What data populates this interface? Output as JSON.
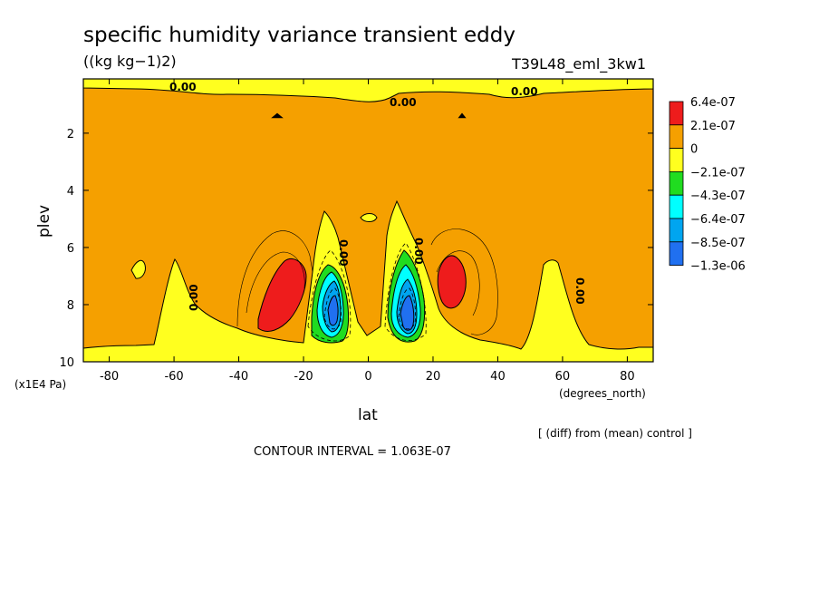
{
  "chart_data": {
    "type": "contour",
    "title": "specific humidity variance transient eddy",
    "units_label": "((kg kg−1)2)",
    "run_label": "T39L48_eml_3kw1",
    "xlabel": "lat",
    "x_units": "(degrees_north)",
    "ylabel": "plev",
    "y_units": "(x1E4 Pa)",
    "xlim": [
      -88,
      88
    ],
    "ylim": [
      10,
      0.1
    ],
    "x_ticks": [
      "-80",
      "-60",
      "-40",
      "-20",
      "0",
      "20",
      "40",
      "60",
      "80"
    ],
    "y_ticks": [
      "2",
      "4",
      "6",
      "8",
      "10"
    ],
    "x_tick_values": [
      -80,
      -60,
      -40,
      -20,
      0,
      20,
      40,
      60,
      80
    ],
    "y_tick_values": [
      2,
      4,
      6,
      8,
      10
    ],
    "note": "[ (diff) from (mean) control ]",
    "contour_interval_text": "CONTOUR INTERVAL = 1.063E-07",
    "contour_labels": [
      "0.00",
      "0.00",
      "0.00",
      "0.00",
      "0.00",
      "0.00",
      "0.00"
    ],
    "legend": [
      {
        "label": "6.4e-07",
        "color": "#ee1c1c"
      },
      {
        "label": "2.1e-07",
        "color": "#f5a000"
      },
      {
        "label": "0",
        "color": "#ffff1f"
      },
      {
        "label": "−2.1e-07",
        "color": "#20dc20"
      },
      {
        "label": "−4.3e-07",
        "color": "#00ffff"
      },
      {
        "label": "−6.4e-07",
        "color": "#00a5f0"
      },
      {
        "label": "−8.5e-07",
        "color": "#2070f0"
      },
      {
        "label": "−1.3e-06",
        "color": ""
      }
    ],
    "colors": {
      "positive": "#f5a000",
      "strong_positive": "#ee1c1c",
      "near_zero": "#ffff1f",
      "neg1": "#20dc20",
      "neg2": "#00ffff",
      "neg3": "#00a5f0",
      "neg4": "#2070f0"
    },
    "features": [
      {
        "name": "southern-negative-core",
        "lat": -12,
        "plev": 8.2,
        "min_value": -1e-06
      },
      {
        "name": "northern-negative-core",
        "lat": 13,
        "plev": 8.3,
        "min_value": -1.2e-06
      },
      {
        "name": "southern-positive-max",
        "lat": -24,
        "plev": 7.3,
        "max_value": 6.4e-07
      },
      {
        "name": "northern-positive-max",
        "lat": 26,
        "plev": 7.2,
        "max_value": 6.4e-07
      }
    ]
  }
}
